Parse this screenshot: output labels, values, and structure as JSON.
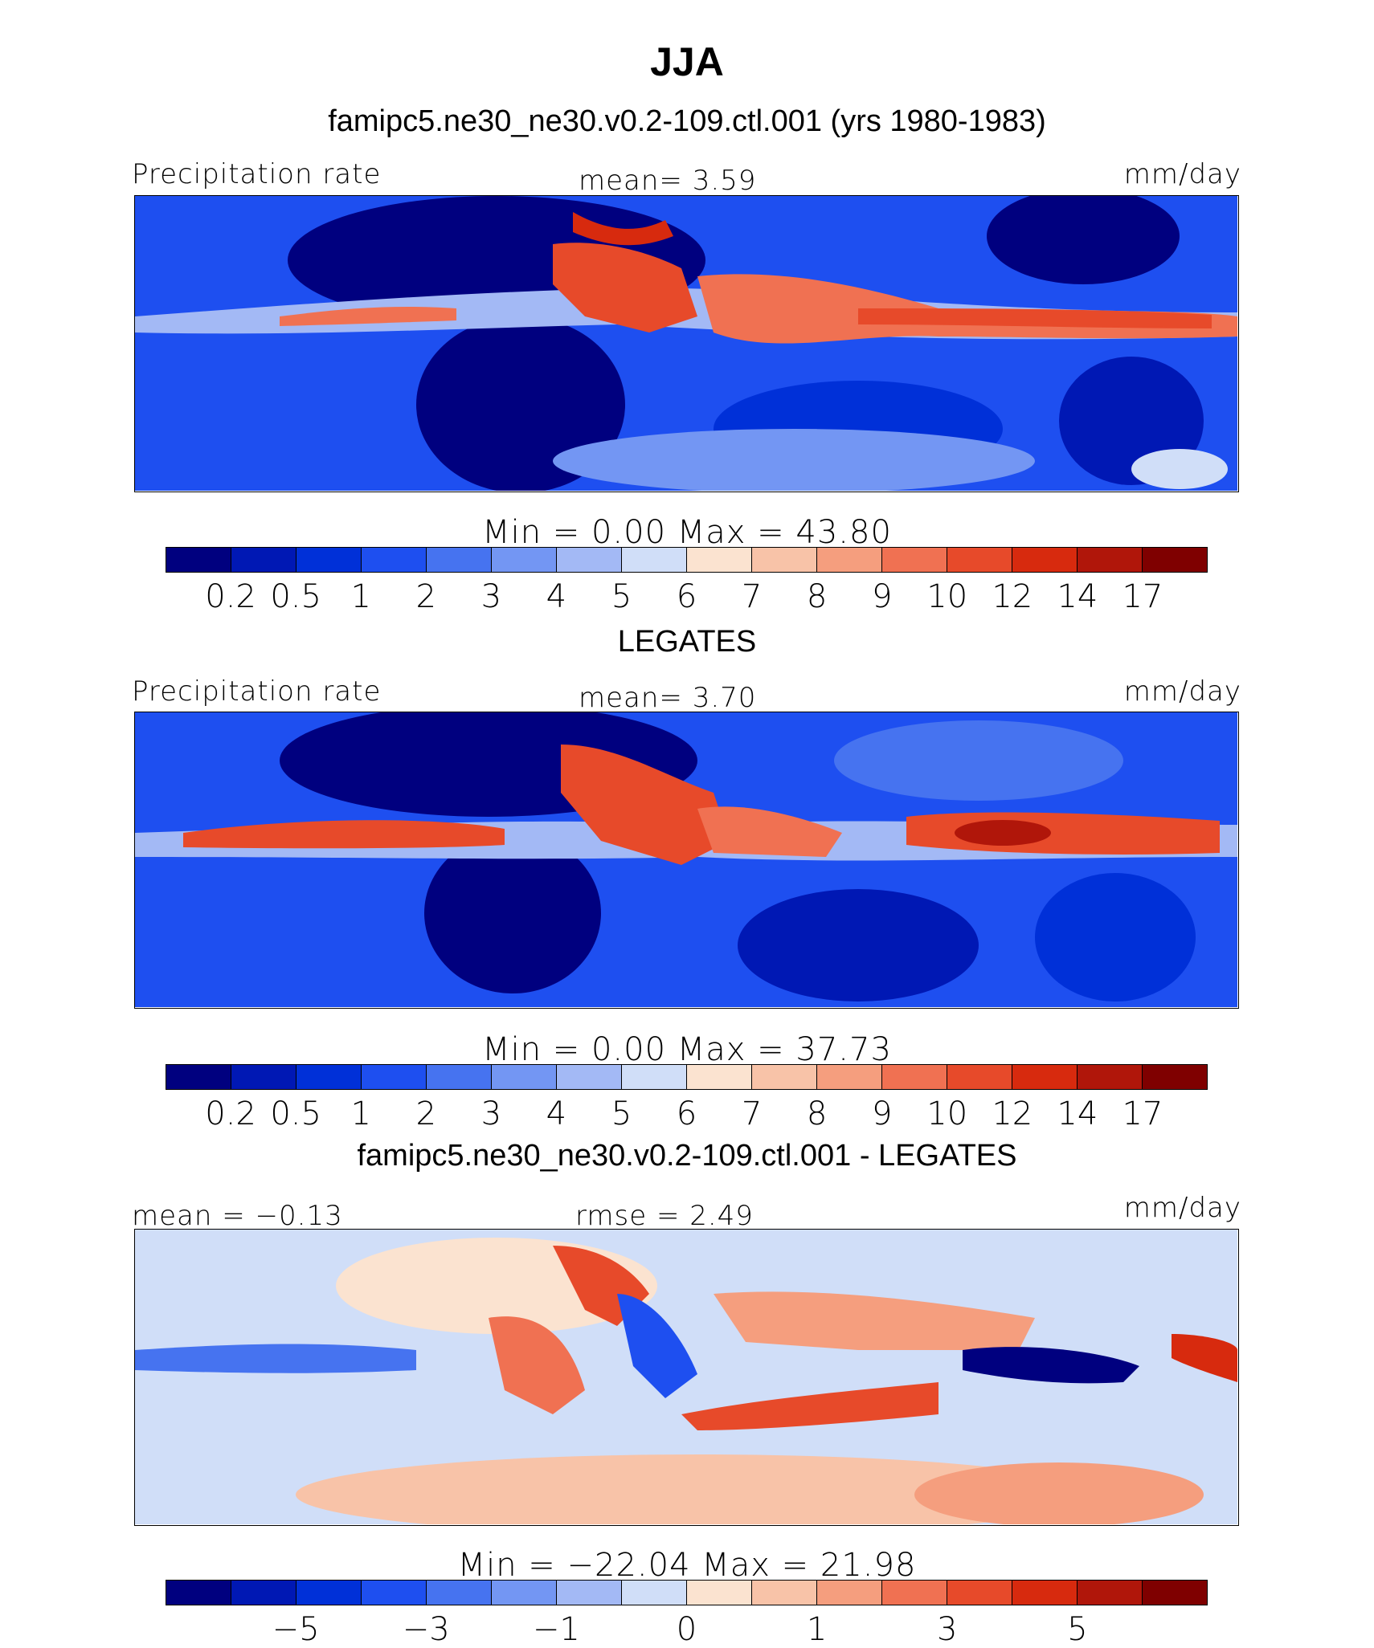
{
  "title": "JJA",
  "colors": {
    "precip_scale": [
      "#00007f",
      "#0018b4",
      "#0030d8",
      "#1e4ff0",
      "#4673f0",
      "#7396f3",
      "#a3b9f5",
      "#d0def8",
      "#fbe3d0",
      "#f8c3a8",
      "#f59e7e",
      "#f07152",
      "#e74a2a",
      "#d72a0e",
      "#b0160a",
      "#7f0000"
    ],
    "diff_scale": [
      "#00007f",
      "#0018b4",
      "#0030d8",
      "#1e4ff0",
      "#4673f0",
      "#7396f3",
      "#a3b9f5",
      "#d0def8",
      "#fbe3d0",
      "#f8c3a8",
      "#f59e7e",
      "#f07152",
      "#e74a2a",
      "#d72a0e",
      "#b0160a",
      "#7f0000"
    ]
  },
  "panels": [
    {
      "subtitle": "famipc5.ne30_ne30.v0.2-109.ctl.001 (yrs 1980-1983)",
      "left_label": "Precipitation rate",
      "center_label": "mean=    3.59",
      "units": "mm/day",
      "minmax": "Min  =     0.00  Max  =    43.80",
      "ticks": [
        "0.2",
        "0.5",
        "1",
        "2",
        "3",
        "4",
        "5",
        "6",
        "7",
        "8",
        "9",
        "10",
        "12",
        "14",
        "17"
      ]
    },
    {
      "subtitle": "LEGATES",
      "left_label": "Precipitation rate",
      "center_label": "mean=    3.70",
      "units": "mm/day",
      "minmax": "Min  =     0.00  Max  =    37.73",
      "ticks": [
        "0.2",
        "0.5",
        "1",
        "2",
        "3",
        "4",
        "5",
        "6",
        "7",
        "8",
        "9",
        "10",
        "12",
        "14",
        "17"
      ]
    },
    {
      "subtitle": "famipc5.ne30_ne30.v0.2-109.ctl.001 - LEGATES",
      "left_label": "mean =  −0.13",
      "center_label": "rmse =    2.49",
      "units": "mm/day",
      "minmax": "Min  = −22.04  Max  =   21.98",
      "ticks": [
        "−5",
        "−3",
        "−1",
        "0",
        "1",
        "3",
        "5"
      ]
    }
  ],
  "chart_data": [
    {
      "type": "heatmap",
      "title": "JJA",
      "subtitle": "famipc5.ne30_ne30.v0.2-109.ctl.001 (yrs 1980-1983)",
      "variable": "Precipitation rate",
      "units": "mm/day",
      "mean": 3.59,
      "min": 0.0,
      "max": 43.8,
      "levels": [
        0.2,
        0.5,
        1,
        2,
        3,
        4,
        5,
        6,
        7,
        8,
        9,
        10,
        12,
        14,
        17
      ]
    },
    {
      "type": "heatmap",
      "title": "JJA",
      "subtitle": "LEGATES",
      "variable": "Precipitation rate",
      "units": "mm/day",
      "mean": 3.7,
      "min": 0.0,
      "max": 37.73,
      "levels": [
        0.2,
        0.5,
        1,
        2,
        3,
        4,
        5,
        6,
        7,
        8,
        9,
        10,
        12,
        14,
        17
      ]
    },
    {
      "type": "heatmap",
      "title": "JJA",
      "subtitle": "famipc5.ne30_ne30.v0.2-109.ctl.001 - LEGATES",
      "units": "mm/day",
      "mean": -0.13,
      "rmse": 2.49,
      "min": -22.04,
      "max": 21.98,
      "levels_labeled": [
        -5,
        -3,
        -1,
        0,
        1,
        3,
        5
      ]
    }
  ]
}
